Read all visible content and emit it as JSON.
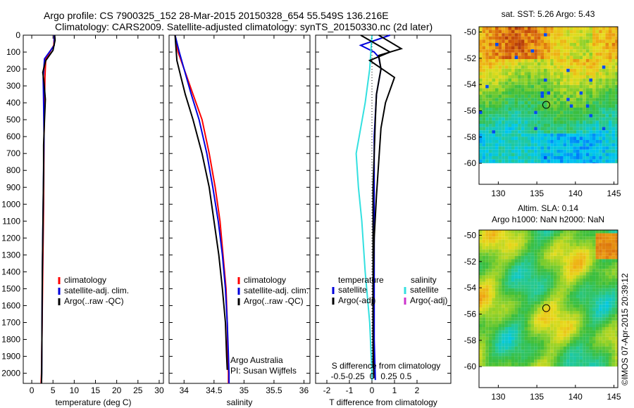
{
  "header": {
    "line1": "Argo profile: CS 7900325_152 28-Mar-2015 20150328_654 55.549S 136.216E",
    "line2": "Climatology: CARS2009. Satellite-adjusted climatology: synTS_20150330.nc (2d later)"
  },
  "colors": {
    "climatology": "#ff0000",
    "satellite": "#0000dd",
    "argo": "#000000",
    "sat_salinity": "#33e0e0",
    "argo_adj_salinity": "#cc33cc"
  },
  "chart_data": [
    {
      "type": "line",
      "id": "temperature",
      "xlabel": "temperature (deg C)",
      "xlim": [
        -2,
        31
      ],
      "ylim": [
        2060,
        0
      ],
      "xticks": [
        0,
        5,
        10,
        15,
        20,
        25,
        30
      ],
      "yticks": [
        0,
        100,
        200,
        300,
        400,
        500,
        600,
        700,
        800,
        900,
        1000,
        1100,
        1200,
        1300,
        1400,
        1500,
        1600,
        1700,
        1800,
        1900,
        2000
      ],
      "legend": [
        "climatology",
        "satellite-adj. clim.",
        "Argo(..raw -QC)"
      ],
      "series": [
        {
          "name": "climatology",
          "color": "#ff0000",
          "x": [
            5.3,
            5.2,
            3.3,
            3.1,
            3.0,
            2.9,
            2.85,
            2.8,
            2.7,
            2.6,
            2.5,
            2.4,
            2.3,
            2.2
          ],
          "y": [
            0,
            60,
            140,
            250,
            400,
            600,
            800,
            1000,
            1200,
            1400,
            1600,
            1800,
            2000,
            2060
          ]
        },
        {
          "name": "satellite-adj. clim.",
          "color": "#0000dd",
          "x": [
            5.3,
            5.3,
            3.0,
            2.7,
            2.8,
            2.9,
            2.8,
            2.7,
            2.6,
            2.5,
            2.45,
            2.4,
            2.35,
            2.3
          ],
          "y": [
            0,
            60,
            140,
            250,
            400,
            600,
            800,
            1000,
            1200,
            1400,
            1600,
            1800,
            2000,
            2060
          ]
        },
        {
          "name": "Argo(..raw -QC)",
          "color": "#000000",
          "x": [
            5.4,
            5.5,
            5.0,
            3.3,
            2.6,
            2.9,
            3.2,
            3.0,
            2.8,
            2.8,
            2.7,
            2.6,
            2.5,
            2.45,
            2.4,
            2.35,
            2.3
          ],
          "y": [
            0,
            30,
            90,
            150,
            220,
            280,
            380,
            500,
            650,
            800,
            1000,
            1200,
            1400,
            1600,
            1800,
            2000,
            2060
          ]
        }
      ]
    },
    {
      "type": "line",
      "id": "salinity",
      "xlabel": "salinity",
      "xlim": [
        33.75,
        36.1
      ],
      "ylim": [
        2060,
        0
      ],
      "xticks": [
        34,
        34.5,
        35,
        35.5,
        36
      ],
      "legend": [
        "climatology",
        "satellite-adj. clim.",
        "Argo(..raw -QC)"
      ],
      "annotation": [
        "Argo Australia",
        "PI: Susan Wijffels"
      ],
      "series": [
        {
          "name": "climatology",
          "color": "#ff0000",
          "x": [
            33.85,
            33.9,
            34.0,
            34.15,
            34.3,
            34.42,
            34.52,
            34.6,
            34.65,
            34.7,
            34.72,
            34.73,
            34.74,
            34.74
          ],
          "y": [
            0,
            100,
            200,
            350,
            500,
            700,
            900,
            1100,
            1300,
            1500,
            1700,
            1900,
            2000,
            2060
          ]
        },
        {
          "name": "satellite-adj. clim.",
          "color": "#0000dd",
          "x": [
            33.85,
            33.92,
            34.0,
            34.12,
            34.25,
            34.38,
            34.48,
            34.57,
            34.64,
            34.69,
            34.72,
            34.74,
            34.75,
            34.75
          ],
          "y": [
            0,
            100,
            200,
            350,
            500,
            700,
            900,
            1100,
            1300,
            1500,
            1700,
            1900,
            2000,
            2060
          ]
        },
        {
          "name": "Argo(..raw -QC)",
          "color": "#000000",
          "x": [
            33.85,
            33.88,
            33.95,
            34.02,
            34.15,
            34.3,
            34.42,
            34.5,
            34.58,
            34.64,
            34.69,
            34.71,
            34.72
          ],
          "y": [
            0,
            150,
            250,
            350,
            500,
            700,
            900,
            1100,
            1300,
            1500,
            1700,
            1900,
            1980
          ]
        }
      ]
    },
    {
      "type": "line",
      "id": "difference",
      "xlabel": "T difference from climatology",
      "xlabel_top": "S difference from climatology",
      "xlim": [
        -2.5,
        3.5
      ],
      "ylim": [
        2060,
        0
      ],
      "xticks": [
        -2,
        -1,
        0,
        1,
        2
      ],
      "xticks_s": [
        "-0.5",
        "-0.25",
        "0",
        "0.25",
        "0.5"
      ],
      "legend_t_title": "temperature",
      "legend_s_title": "salinity",
      "legend": [
        "satellite",
        "Argo(-adj)",
        "satellite",
        "Argo(-adj)"
      ],
      "series": [
        {
          "name": "temperature satellite",
          "color": "#0000dd",
          "x": [
            0.8,
            -0.5,
            0.1,
            0.3,
            0.4,
            0.2,
            0.1,
            0.1,
            0.1,
            0.1,
            0.1,
            0.15
          ],
          "y": [
            0,
            60,
            100,
            130,
            200,
            350,
            600,
            900,
            1200,
            1500,
            1800,
            2040
          ]
        },
        {
          "name": "temperature Argo(-adj)",
          "color": "#000000",
          "x": [
            0.3,
            1.3,
            0.3,
            0.4,
            0.2,
            0.15,
            0.1,
            0.05,
            0.05,
            0.05,
            0.05,
            0.08
          ],
          "y": [
            0,
            80,
            120,
            200,
            350,
            500,
            700,
            900,
            1200,
            1500,
            1800,
            2030
          ]
        },
        {
          "name": "salinity satellite",
          "color": "#33e0e0",
          "x": [
            0.0,
            -0.1,
            -0.3,
            -0.7,
            -0.6,
            -0.45,
            -0.3,
            -0.1,
            0.0,
            0.0
          ],
          "y": [
            0,
            200,
            400,
            700,
            900,
            1100,
            1400,
            1700,
            2000,
            2040
          ]
        },
        {
          "name": "salinity Argo(-adj)",
          "color": "#000000",
          "x": [
            -0.5,
            0.8,
            -0.1,
            1.0,
            0.6,
            0.4,
            0.3,
            0.2,
            0.1,
            0.05,
            0.05
          ],
          "y": [
            0,
            100,
            150,
            250,
            400,
            550,
            750,
            950,
            1200,
            1500,
            1950
          ]
        }
      ]
    },
    {
      "type": "heatmap",
      "id": "sst-map",
      "title": "sat. SST: 5.26  Argo: 5.43",
      "xlim": [
        127.5,
        145.5
      ],
      "ylim": [
        -61.6,
        -49.6
      ],
      "xticks": [
        130,
        135,
        140,
        145
      ],
      "yticks": [
        -50,
        -52,
        -54,
        -56,
        -58,
        -60
      ],
      "marker": {
        "lon": 136.216,
        "lat": -55.549
      }
    },
    {
      "type": "heatmap",
      "id": "sla-map",
      "title": "Altim. SLA: 0.14",
      "subtitle": "Argo h1000: NaN h2000: NaN",
      "xlim": [
        127.5,
        145.5
      ],
      "ylim": [
        -61.6,
        -49.6
      ],
      "xticks": [
        130,
        135,
        140,
        145
      ],
      "yticks": [
        -50,
        -52,
        -54,
        -56,
        -58,
        -60
      ],
      "marker": {
        "lon": 136.216,
        "lat": -55.549
      }
    }
  ],
  "footer": {
    "credit": "©IMOS 07-Apr-2015 20:39:12"
  }
}
